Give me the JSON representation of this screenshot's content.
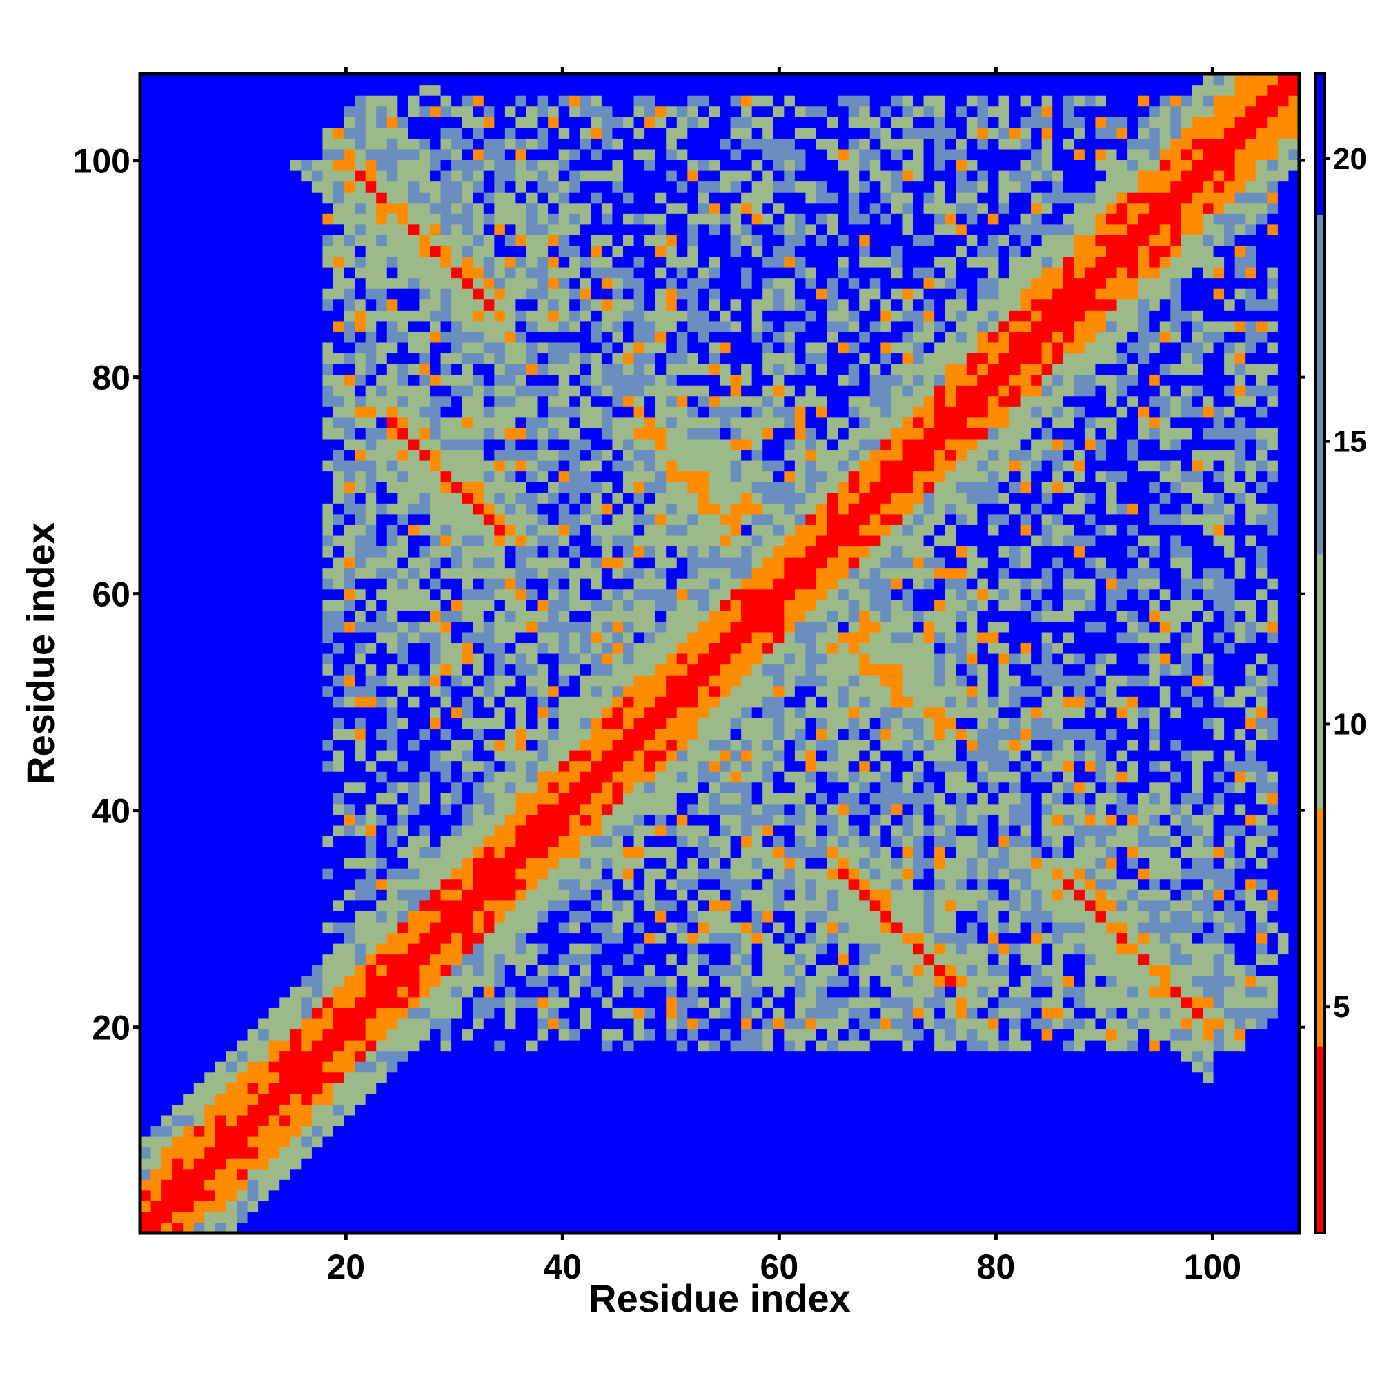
{
  "chart_data": {
    "type": "heatmap",
    "title": "",
    "xlabel": "Residue index",
    "ylabel": "Residue index",
    "n_residues": 108,
    "xlim": [
      1,
      108
    ],
    "ylim": [
      1,
      108
    ],
    "xticks": [
      20,
      40,
      60,
      80,
      100
    ],
    "yticks": [
      20,
      40,
      60,
      80,
      100
    ],
    "colorbar": {
      "ticks": [
        5,
        10,
        15,
        20
      ],
      "range": [
        1,
        21.5
      ],
      "bands": [
        {
          "from": 1,
          "to": 4.3,
          "color": "#ff0000"
        },
        {
          "from": 4.3,
          "to": 8.5,
          "color": "#ff8c00"
        },
        {
          "from": 8.5,
          "to": 13,
          "color": "#9cb98a"
        },
        {
          "from": 13,
          "to": 19,
          "color": "#6a8fbf"
        },
        {
          "from": 19,
          "to": 21.5,
          "color": "#0000ff"
        }
      ]
    },
    "colors": {
      "contact_strong": "#ff0000",
      "contact_medium": "#ff8c00",
      "near": "#9cb98a",
      "mid": "#6a8fbf",
      "far": "#0000ff"
    },
    "structure": {
      "diagonal_band_halfwidth": 4,
      "antiparallel_contacts": [
        {
          "i_range": [
            20,
            34
          ],
          "j_range": [
            100,
            86
          ],
          "strength": "strong"
        },
        {
          "i_range": [
            24,
            34
          ],
          "j_range": [
            76,
            66
          ],
          "strength": "strong"
        },
        {
          "i_range": [
            50,
            56
          ],
          "j_range": [
            72,
            66
          ],
          "strength": "medium"
        },
        {
          "i_range": [
            66,
            74
          ],
          "j_range": [
            34,
            26
          ],
          "strength": "strong"
        },
        {
          "i_range": [
            68,
            76
          ],
          "j_range": [
            56,
            48
          ],
          "strength": "medium"
        },
        {
          "i_range": [
            88,
            100
          ],
          "j_range": [
            32,
            20
          ],
          "strength": "strong"
        }
      ],
      "parallel_contacts": [
        {
          "i_range": [
            2,
            14
          ],
          "offset": 4
        },
        {
          "i_range": [
            36,
            50
          ],
          "offset": 4
        },
        {
          "i_range": [
            76,
            106
          ],
          "offset": 4
        }
      ],
      "description_grid": "symmetric residue-residue distance map"
    },
    "legend": "colorbar-right",
    "grid": false
  }
}
